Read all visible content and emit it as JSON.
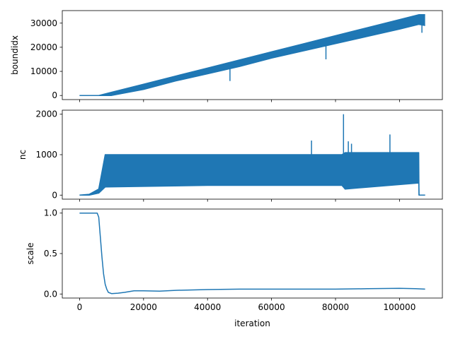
{
  "chart_data": {
    "type": "line",
    "shared_x": true,
    "xlabel": "iteration",
    "xlim": [
      -5400,
      113400
    ],
    "xticks": [
      0,
      20000,
      40000,
      60000,
      80000,
      100000
    ],
    "xtick_labels": [
      "0",
      "20000",
      "40000",
      "60000",
      "80000",
      "100000"
    ],
    "color": "#1f77b4",
    "panels": [
      {
        "ylabel": "boundidx",
        "ylim": [
          -1700,
          35200
        ],
        "yticks": [
          0,
          10000,
          20000,
          30000
        ],
        "ytick_labels": [
          "0",
          "10000",
          "20000",
          "30000"
        ],
        "upper": {
          "x": [
            0,
            6000,
            106000,
            108000
          ],
          "y": [
            0,
            0,
            33500,
            33500
          ]
        },
        "lower": {
          "x": [
            0,
            6000,
            10000,
            20000,
            30000,
            40000,
            50000,
            60000,
            70000,
            80000,
            90000,
            100000,
            106000,
            108000
          ],
          "y": [
            0,
            0,
            0,
            2500,
            6000,
            9000,
            12000,
            15500,
            18500,
            21500,
            24500,
            27500,
            29500,
            29000
          ]
        },
        "spikes": [
          {
            "x": 47000,
            "y": 6000
          },
          {
            "x": 77000,
            "y": 15000
          },
          {
            "x": 107000,
            "y": 26000
          }
        ]
      },
      {
        "ylabel": "nc",
        "ylim": [
          -100,
          2100
        ],
        "yticks": [
          0,
          1000,
          2000
        ],
        "ytick_labels": [
          "0",
          "1000",
          "2000"
        ],
        "upper": {
          "x": [
            0,
            3000,
            6000,
            8000,
            82000,
            83000,
            106000,
            106100,
            108000
          ],
          "y": [
            0,
            20,
            150,
            1000,
            1000,
            1050,
            1050,
            0,
            0
          ]
        },
        "lower": {
          "x": [
            0,
            3000,
            6000,
            8000,
            40000,
            82000,
            83000,
            106000,
            106100,
            108000
          ],
          "y": [
            0,
            0,
            50,
            200,
            240,
            240,
            150,
            300,
            0,
            0
          ]
        },
        "spikes": [
          {
            "x": 72500,
            "y": 1350
          },
          {
            "x": 82500,
            "y": 2000
          },
          {
            "x": 84000,
            "y": 1330
          },
          {
            "x": 85000,
            "y": 1270
          },
          {
            "x": 97000,
            "y": 1500
          }
        ]
      },
      {
        "ylabel": "scale",
        "ylim": [
          -0.05,
          1.05
        ],
        "yticks": [
          0.0,
          0.5,
          1.0
        ],
        "ytick_labels": [
          "0.0",
          "0.5",
          "1.0"
        ],
        "x": [
          0,
          5500,
          6000,
          6500,
          7000,
          7500,
          8000,
          8500,
          9000,
          10000,
          12000,
          14000,
          17000,
          20000,
          25000,
          30000,
          40000,
          50000,
          60000,
          70000,
          80000,
          90000,
          100000,
          105000,
          108000
        ],
        "y": [
          1.0,
          1.0,
          0.95,
          0.7,
          0.45,
          0.25,
          0.12,
          0.06,
          0.02,
          0.005,
          0.01,
          0.02,
          0.04,
          0.04,
          0.035,
          0.045,
          0.055,
          0.06,
          0.06,
          0.06,
          0.06,
          0.065,
          0.07,
          0.065,
          0.06
        ]
      }
    ]
  }
}
